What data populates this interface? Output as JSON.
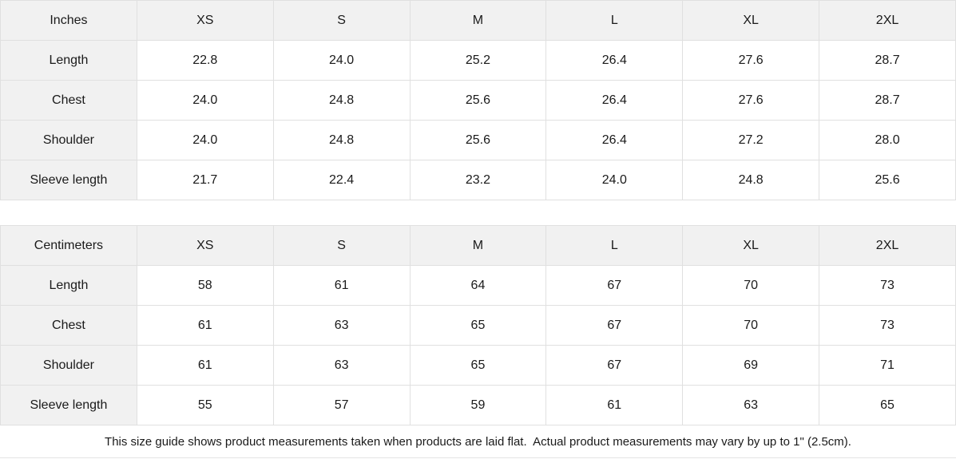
{
  "colors": {
    "header_fill": "#f1f1f1",
    "label_column_fill": "#f1f1f1",
    "cell_fill": "#ffffff",
    "border": "#e0e0e0",
    "text": "#1a1a1a"
  },
  "tables": [
    {
      "unit_label": "Inches",
      "columns": [
        "XS",
        "S",
        "M",
        "L",
        "XL",
        "2XL"
      ],
      "rows": [
        {
          "label": "Length",
          "values": [
            "22.8",
            "24.0",
            "25.2",
            "26.4",
            "27.6",
            "28.7"
          ]
        },
        {
          "label": "Chest",
          "values": [
            "24.0",
            "24.8",
            "25.6",
            "26.4",
            "27.6",
            "28.7"
          ]
        },
        {
          "label": "Shoulder",
          "values": [
            "24.0",
            "24.8",
            "25.6",
            "26.4",
            "27.2",
            "28.0"
          ]
        },
        {
          "label": "Sleeve length",
          "values": [
            "21.7",
            "22.4",
            "23.2",
            "24.0",
            "24.8",
            "25.6"
          ]
        }
      ]
    },
    {
      "unit_label": "Centimeters",
      "columns": [
        "XS",
        "S",
        "M",
        "L",
        "XL",
        "2XL"
      ],
      "rows": [
        {
          "label": "Length",
          "values": [
            "58",
            "61",
            "64",
            "67",
            "70",
            "73"
          ]
        },
        {
          "label": "Chest",
          "values": [
            "61",
            "63",
            "65",
            "67",
            "70",
            "73"
          ]
        },
        {
          "label": "Shoulder",
          "values": [
            "61",
            "63",
            "65",
            "67",
            "69",
            "71"
          ]
        },
        {
          "label": "Sleeve length",
          "values": [
            "55",
            "57",
            "59",
            "61",
            "63",
            "65"
          ]
        }
      ]
    }
  ],
  "footer": {
    "note": "This size guide shows product measurements taken when products are laid flat.  Actual product measurements may vary by up to 1\" (2.5cm)."
  }
}
